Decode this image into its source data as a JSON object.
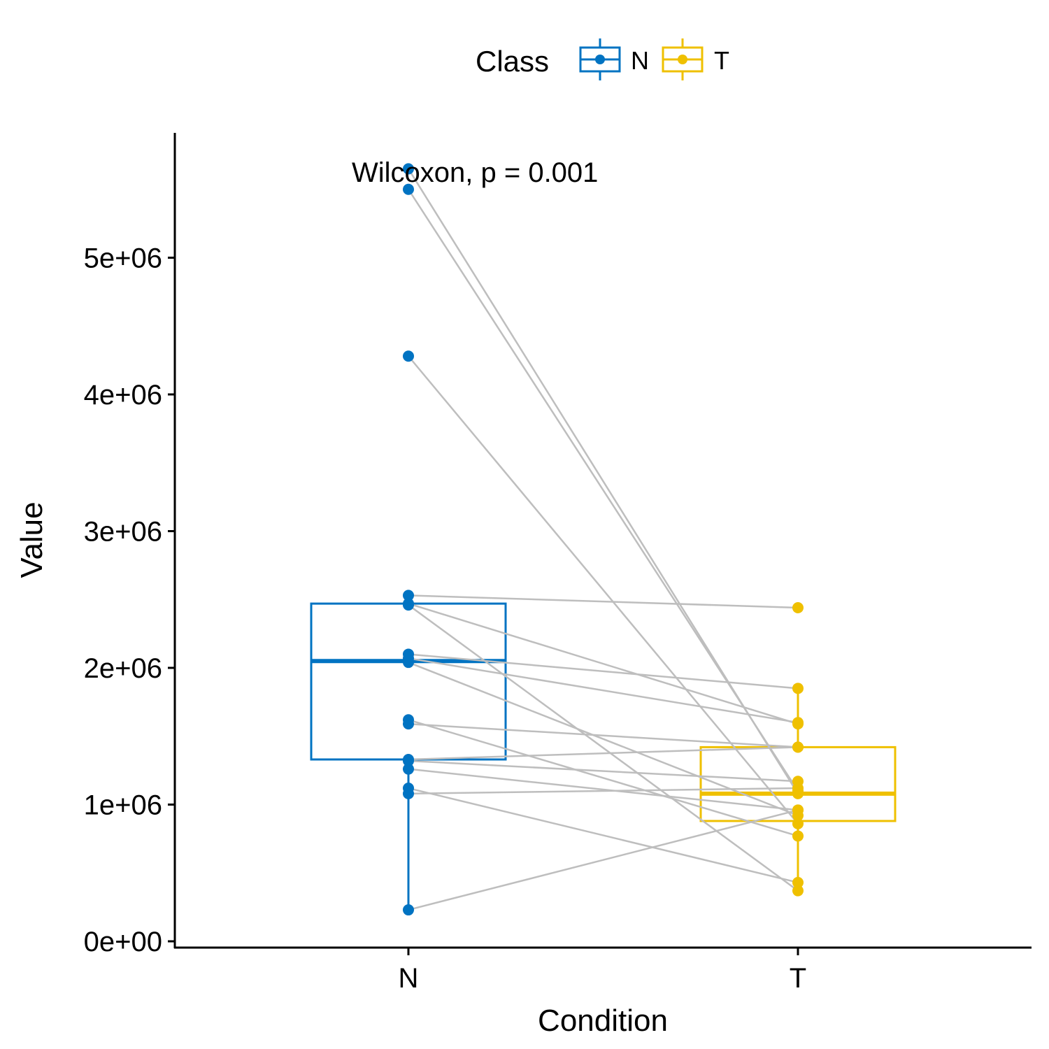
{
  "chart_data": {
    "type": "boxplot-paired",
    "title": "",
    "xlabel": "Condition",
    "ylabel": "Value",
    "categories": [
      "N",
      "T"
    ],
    "ylim": [
      0,
      5800000
    ],
    "yticks": [
      0,
      1000000,
      2000000,
      3000000,
      4000000,
      5000000
    ],
    "ytick_labels": [
      "0e+00",
      "1e+06",
      "2e+06",
      "3e+06",
      "4e+06",
      "5e+06"
    ],
    "legend": {
      "title": "Class",
      "position": "top",
      "entries": [
        {
          "label": "N",
          "color": "#0073C2"
        },
        {
          "label": "T",
          "color": "#EFC000"
        }
      ]
    },
    "annotation": "Wilcoxon, p = 0.001",
    "boxes": [
      {
        "name": "N",
        "color": "#0073C2",
        "min": 230000,
        "q1": 1330000,
        "median": 2050000,
        "q3": 2470000,
        "max": 2530000
      },
      {
        "name": "T",
        "color": "#EFC000",
        "min": 370000,
        "q1": 880000,
        "median": 1080000,
        "q3": 1420000,
        "max": 1850000
      }
    ],
    "outliers": {
      "N": [
        5650000,
        5500000,
        4280000
      ],
      "T": [
        2440000
      ]
    },
    "pairs": [
      {
        "N": 5650000,
        "T": 1080000
      },
      {
        "N": 5500000,
        "T": 1100000
      },
      {
        "N": 4280000,
        "T": 860000
      },
      {
        "N": 2530000,
        "T": 2440000
      },
      {
        "N": 2470000,
        "T": 1590000
      },
      {
        "N": 2460000,
        "T": 370000
      },
      {
        "N": 2100000,
        "T": 1850000
      },
      {
        "N": 2070000,
        "T": 1600000
      },
      {
        "N": 2040000,
        "T": 920000
      },
      {
        "N": 1620000,
        "T": 770000
      },
      {
        "N": 1590000,
        "T": 1420000
      },
      {
        "N": 1330000,
        "T": 1420000
      },
      {
        "N": 1320000,
        "T": 1170000
      },
      {
        "N": 1260000,
        "T": 960000
      },
      {
        "N": 1120000,
        "T": 430000
      },
      {
        "N": 1080000,
        "T": 1120000
      },
      {
        "N": 230000,
        "T": 960000
      }
    ]
  }
}
